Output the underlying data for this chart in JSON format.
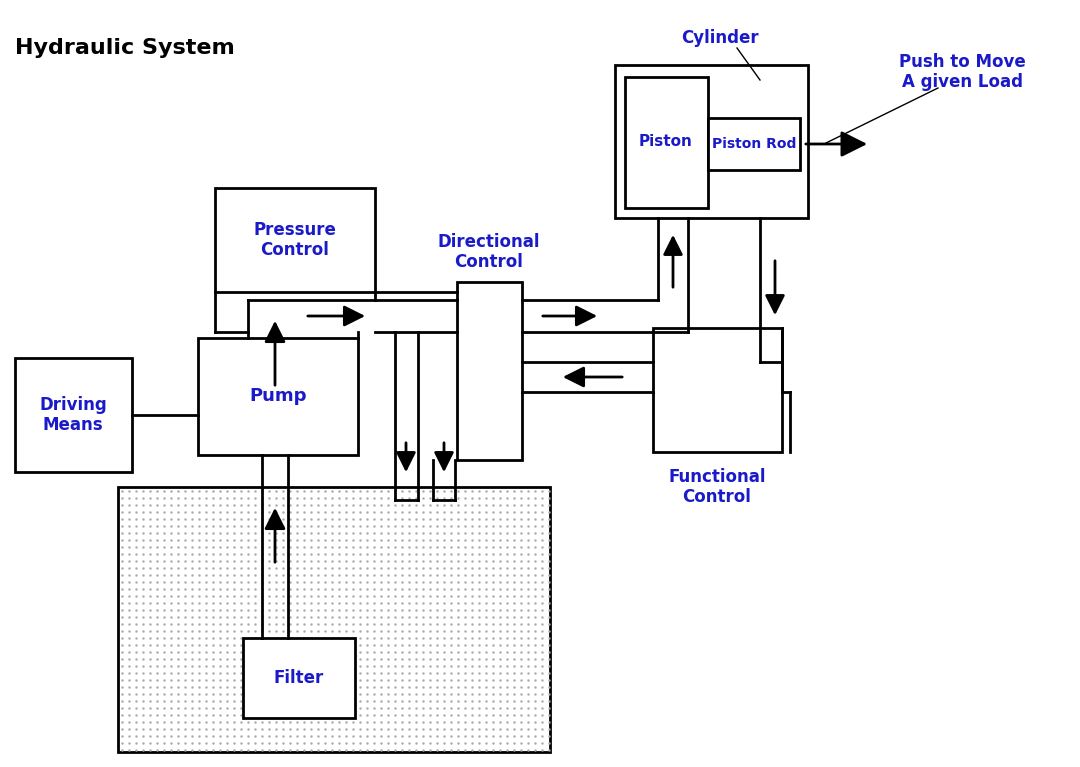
{
  "title": "Hydraulic System",
  "title_color": "#000000",
  "label_color": "#1a1ac8",
  "bg_color": "#ffffff",
  "lw": 2,
  "figsize": [
    10.8,
    7.67
  ],
  "dpi": 100,
  "boxes": {
    "driving_means": [
      15,
      358,
      132,
      472
    ],
    "pump": [
      198,
      338,
      358,
      455
    ],
    "pressure_ctrl": [
      215,
      188,
      375,
      292
    ],
    "dir_ctrl": [
      457,
      282,
      522,
      460
    ],
    "func_ctrl": [
      653,
      328,
      782,
      452
    ],
    "cylinder": [
      615,
      65,
      808,
      218
    ],
    "piston": [
      625,
      77,
      708,
      208
    ],
    "piston_rod": [
      708,
      118,
      800,
      170
    ],
    "tank": [
      118,
      487,
      550,
      752
    ],
    "filter": [
      243,
      638,
      355,
      718
    ]
  }
}
